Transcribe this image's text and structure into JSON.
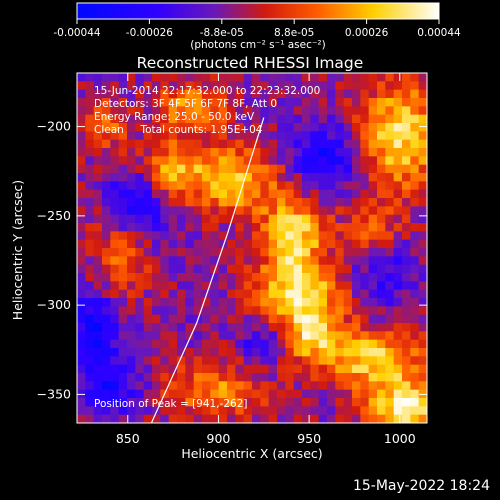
{
  "colorbar": {
    "tick_labels": [
      "-0.00044",
      "-0.00026",
      "-8.8e-05",
      "8.8e-05",
      "0.00026",
      "0.00044"
    ],
    "unit_label": "(photons cm⁻² s⁻¹ asec⁻²)",
    "range": [
      -0.00044,
      0.00044
    ]
  },
  "image": {
    "title": "Reconstructed RHESSI Image",
    "info_lines": [
      "15-Jun-2014 22:17:32.000 to 22:23:32.000",
      "Detectors: 3F 4F 5F 6F 7F 8F, Att 0",
      "Energy Range: 25.0 - 50.0 keV",
      "Clean     Total counts: 1.95E+04"
    ],
    "peak_label": "Position of Peak = [941,-262]"
  },
  "footer": {
    "timestamp": "15-May-2022 18:24"
  },
  "chart_data": {
    "type": "heatmap",
    "title": "Reconstructed RHESSI Image",
    "xlabel": "Heliocentric X (arcsec)",
    "ylabel": "Heliocentric Y (arcsec)",
    "xlim": [
      822,
      1015
    ],
    "ylim": [
      -366,
      -170
    ],
    "x_ticks": [
      850,
      900,
      950,
      1000
    ],
    "y_ticks": [
      -200,
      -250,
      -300,
      -350
    ],
    "grid": false,
    "colormap": "blue-purple-red-yellow-white",
    "peak": {
      "x": 941,
      "y": -262
    },
    "limb_line": [
      {
        "x": 863,
        "y": -366
      },
      {
        "x": 888,
        "y": -310
      },
      {
        "x": 905,
        "y": -260
      },
      {
        "x": 925,
        "y": -195
      }
    ],
    "sources": [
      {
        "x": 941,
        "y": -262,
        "amp": 0.00044,
        "rx": 12,
        "ry": 15
      },
      {
        "x": 944,
        "y": -295,
        "amp": 0.0004,
        "rx": 18,
        "ry": 12
      },
      {
        "x": 950,
        "y": -318,
        "amp": 0.00032,
        "rx": 12,
        "ry": 10
      },
      {
        "x": 873,
        "y": -225,
        "amp": 0.00036,
        "rx": 14,
        "ry": 11
      },
      {
        "x": 910,
        "y": -230,
        "amp": 0.00034,
        "rx": 16,
        "ry": 14
      },
      {
        "x": 885,
        "y": -190,
        "amp": 0.00028,
        "rx": 14,
        "ry": 10
      },
      {
        "x": 848,
        "y": -270,
        "amp": 0.00024,
        "rx": 12,
        "ry": 18
      },
      {
        "x": 1000,
        "y": -205,
        "amp": 0.0004,
        "rx": 16,
        "ry": 22
      },
      {
        "x": 985,
        "y": -330,
        "amp": 0.00038,
        "rx": 20,
        "ry": 12
      },
      {
        "x": 1004,
        "y": -358,
        "amp": 0.00042,
        "rx": 16,
        "ry": 12
      },
      {
        "x": 898,
        "y": -348,
        "amp": 0.00026,
        "rx": 20,
        "ry": 12
      },
      {
        "x": 838,
        "y": -200,
        "amp": 0.0002,
        "rx": 10,
        "ry": 12
      },
      {
        "x": 984,
        "y": -260,
        "amp": 0.00022,
        "rx": 12,
        "ry": 12
      }
    ],
    "negative_regions": [
      {
        "x": 856,
        "y": -243,
        "amp": -0.00035,
        "rx": 11,
        "ry": 16
      },
      {
        "x": 832,
        "y": -313,
        "amp": -0.0003,
        "rx": 10,
        "ry": 14
      },
      {
        "x": 840,
        "y": -346,
        "amp": -0.00026,
        "rx": 12,
        "ry": 10
      },
      {
        "x": 960,
        "y": -218,
        "amp": -0.00028,
        "rx": 13,
        "ry": 12
      },
      {
        "x": 925,
        "y": -320,
        "amp": -0.00018,
        "rx": 10,
        "ry": 10
      },
      {
        "x": 990,
        "y": -280,
        "amp": -0.0002,
        "rx": 12,
        "ry": 14
      }
    ]
  }
}
